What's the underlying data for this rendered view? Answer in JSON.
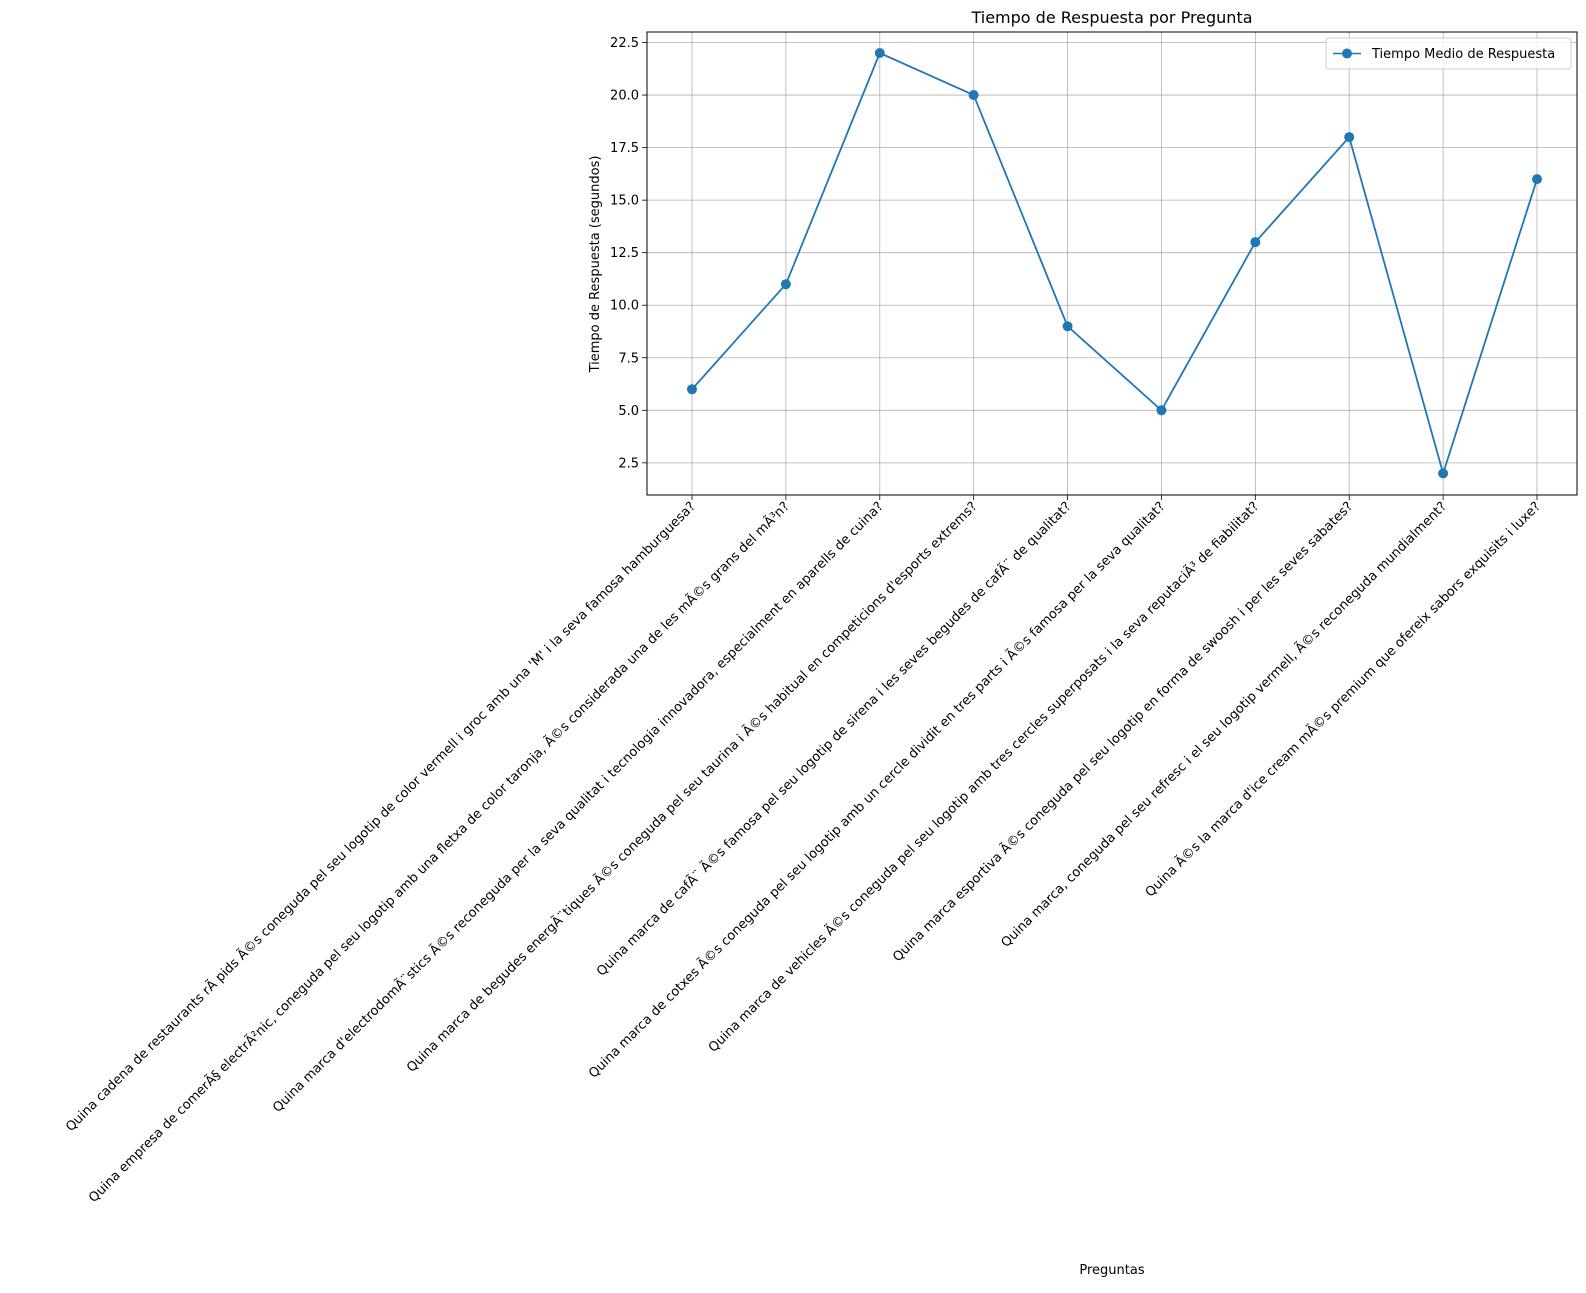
{
  "chart_data": {
    "type": "line",
    "title": "Tiempo de Respuesta por Pregunta",
    "xlabel": "Preguntas",
    "ylabel": "Tiempo de Respuesta (segundos)",
    "ylim": [
      0.97,
      23.0
    ],
    "yticks": [
      "2.5",
      "5.0",
      "7.5",
      "10.0",
      "12.5",
      "15.0",
      "17.5",
      "20.0",
      "22.5"
    ],
    "grid": true,
    "legend_position": "top-right",
    "categories": [
      "Quina cadena de restaurants rÃ pids Ã©s coneguda pel seu logotip de color vermell i groc amb una 'M' i la seva famosa hamburguesa?",
      "Quina empresa de comerÃ§ electrÃ²nic, coneguda pel seu logotip amb una fletxa de color taronja, Ã©s considerada una de les mÃ©s grans del mÃ³n?",
      "Quina marca d'electrodomÃ¨stics Ã©s reconeguda per la seva qualitat i tecnologia innovadora, especialment en aparells de cuina?",
      "Quina marca de begudes energÃ¨tiques Ã©s coneguda pel seu taurina i Ã©s habitual en competicions d'esports extrems?",
      "Quina marca de cafÃ¨ Ã©s famosa pel seu logotip de sirena i les seves begudes de cafÃ¨ de qualitat?",
      "Quina marca de cotxes Ã©s coneguda pel seu logotip amb un cercle dividit en tres parts i Ã©s famosa per la seva qualitat?",
      "Quina marca de vehicles Ã©s coneguda pel seu logotip amb tres cercles superposats i la seva reputaciÃ³ de fiabilitat?",
      "Quina marca esportiva Ã©s coneguda pel seu logotip en forma de swoosh i per les seves sabates?",
      "Quina marca, coneguda pel seu refresc i el seu logotip vermell, Ã©s reconeguda mundialment?",
      "Quina Ã©s la marca d'ice cream mÃ©s premium que ofereix sabors exquisits i luxe?"
    ],
    "series": [
      {
        "name": "Tiempo Medio de Respuesta",
        "values": [
          6,
          11,
          22,
          20,
          9,
          5,
          13,
          18,
          2,
          16
        ],
        "color": "#1f77b4",
        "marker": "circle"
      }
    ]
  }
}
